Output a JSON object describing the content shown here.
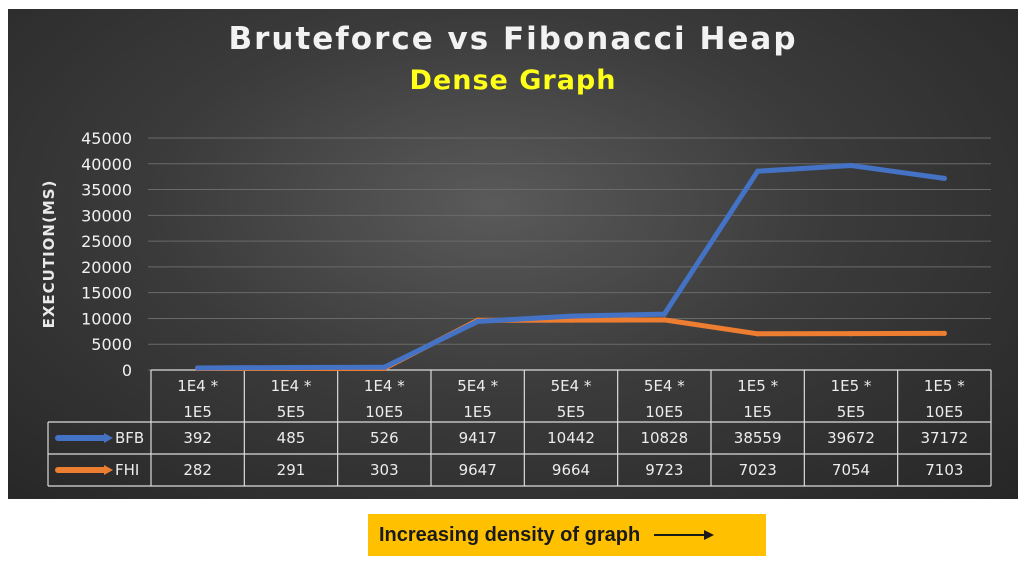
{
  "chart_data": {
    "type": "line",
    "title": "Bruteforce vs Fibonacci Heap",
    "subtitle": "Dense Graph",
    "ylabel": "EXECUTION(MS)",
    "xlabel": "",
    "ylim": [
      0,
      45000
    ],
    "yticks": [
      "45000",
      "40000",
      "35000",
      "30000",
      "25000",
      "20000",
      "15000",
      "10000",
      "5000",
      "0"
    ],
    "grid": true,
    "legend": "data-table",
    "categories": [
      [
        "1E4 *",
        "1E5"
      ],
      [
        "1E4 *",
        "5E5"
      ],
      [
        "1E4 *",
        "10E5"
      ],
      [
        "5E4 *",
        "1E5"
      ],
      [
        "5E4 *",
        "5E5"
      ],
      [
        "5E4 *",
        "10E5"
      ],
      [
        "1E5 *",
        "1E5"
      ],
      [
        "1E5 *",
        "5E5"
      ],
      [
        "1E5 *",
        "10E5"
      ]
    ],
    "series": [
      {
        "name": "BFB",
        "color": "#4472c4",
        "values": [
          392,
          485,
          526,
          9417,
          10442,
          10828,
          38559,
          39672,
          37172
        ]
      },
      {
        "name": "FHI",
        "color": "#ed7d31",
        "values": [
          282,
          291,
          303,
          9647,
          9664,
          9723,
          7023,
          7054,
          7103
        ]
      }
    ]
  },
  "footer": {
    "text": "Increasing density of graph",
    "arrow_icon": "right-arrow-icon"
  }
}
